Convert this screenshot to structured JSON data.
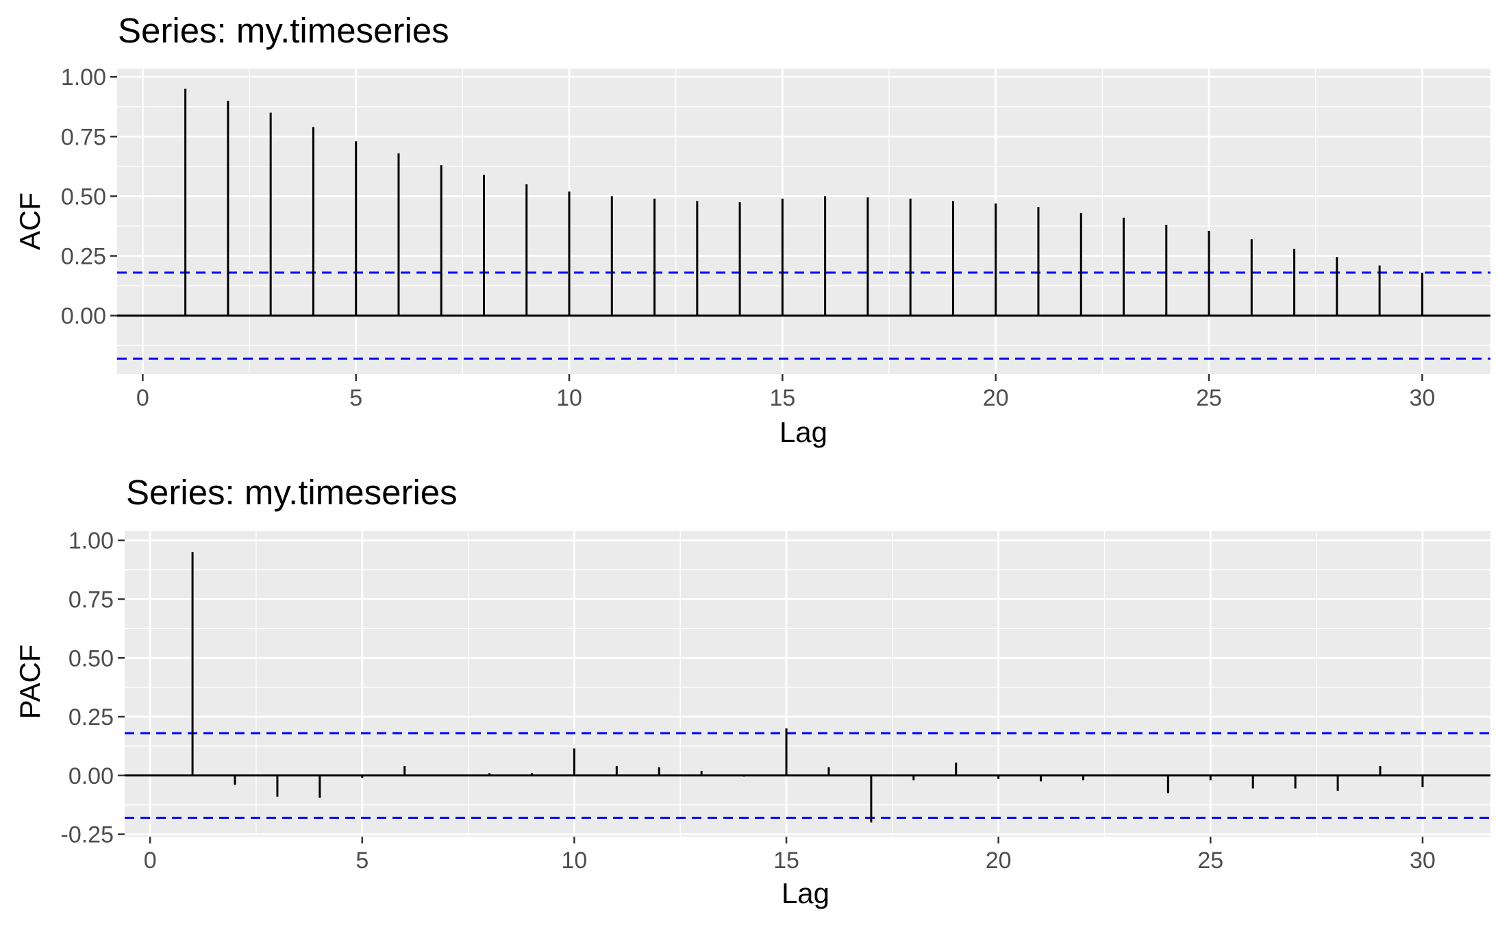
{
  "chart_data": [
    {
      "type": "bar",
      "title": "Series: my.timeseries",
      "xlabel": "Lag",
      "ylabel": "ACF",
      "x": [
        1,
        2,
        3,
        4,
        5,
        6,
        7,
        8,
        9,
        10,
        11,
        12,
        13,
        14,
        15,
        16,
        17,
        18,
        19,
        20,
        21,
        22,
        23,
        24,
        25,
        26,
        27,
        28,
        29,
        30
      ],
      "values": [
        0.95,
        0.9,
        0.85,
        0.79,
        0.73,
        0.68,
        0.63,
        0.59,
        0.55,
        0.52,
        0.5,
        0.49,
        0.48,
        0.475,
        0.49,
        0.5,
        0.495,
        0.49,
        0.48,
        0.47,
        0.455,
        0.43,
        0.41,
        0.38,
        0.355,
        0.32,
        0.28,
        0.245,
        0.21,
        0.18
      ],
      "conf_limit": 0.18,
      "xlim": [
        -0.6,
        31.6
      ],
      "ylim": [
        -0.245,
        1.035
      ],
      "x_ticks": [
        0,
        5,
        10,
        15,
        20,
        25,
        30
      ],
      "x_tick_labels": [
        "0",
        "5",
        "10",
        "15",
        "20",
        "25",
        "30"
      ],
      "y_ticks": [
        0,
        0.25,
        0.5,
        0.75,
        1.0
      ],
      "y_tick_labels": [
        "0.00",
        "0.25",
        "0.50",
        "0.75",
        "1.00"
      ],
      "grid": true,
      "background": "#ebebeb",
      "bar_color": "#000000",
      "conf_line_color": "#0000ff"
    },
    {
      "type": "bar",
      "title": "Series: my.timeseries",
      "xlabel": "Lag",
      "ylabel": "PACF",
      "x": [
        1,
        2,
        3,
        4,
        5,
        6,
        7,
        8,
        9,
        10,
        11,
        12,
        13,
        14,
        15,
        16,
        17,
        18,
        19,
        20,
        21,
        22,
        23,
        24,
        25,
        26,
        27,
        28,
        29,
        30
      ],
      "values": [
        0.95,
        -0.04,
        -0.09,
        -0.095,
        -0.01,
        0.04,
        0.0,
        0.01,
        0.01,
        0.115,
        0.04,
        0.035,
        0.02,
        -0.005,
        0.2,
        0.035,
        -0.2,
        -0.02,
        0.055,
        -0.015,
        -0.025,
        -0.02,
        0.0,
        -0.075,
        -0.02,
        -0.055,
        -0.055,
        -0.065,
        0.04,
        -0.05
      ],
      "conf_limit": 0.18,
      "xlim": [
        -0.6,
        31.6
      ],
      "ylim": [
        -0.26,
        1.04
      ],
      "x_ticks": [
        0,
        5,
        10,
        15,
        20,
        25,
        30
      ],
      "x_tick_labels": [
        "0",
        "5",
        "10",
        "15",
        "20",
        "25",
        "30"
      ],
      "y_ticks": [
        -0.25,
        0,
        0.25,
        0.5,
        0.75,
        1.0
      ],
      "y_tick_labels": [
        "-0.25",
        "0.00",
        "0.25",
        "0.50",
        "0.75",
        "1.00"
      ],
      "grid": true,
      "background": "#ebebeb",
      "bar_color": "#000000",
      "conf_line_color": "#0000ff"
    }
  ]
}
